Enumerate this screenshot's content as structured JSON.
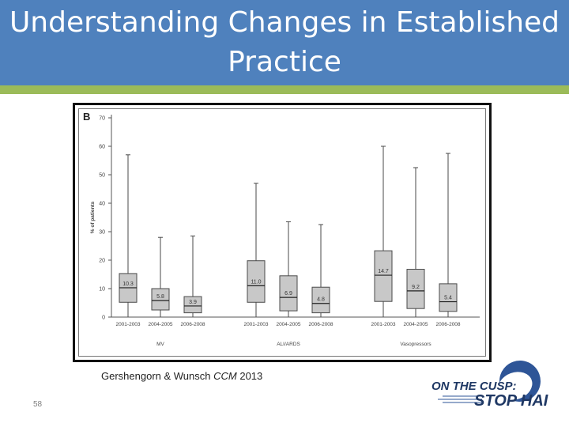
{
  "slide": {
    "title_line1": "Understanding Changes in Established",
    "title_line2": "Practice",
    "citation_authors": "Gershengorn & Wunsch ",
    "citation_journal": "CCM",
    "citation_year": " 2013",
    "page_number": "58"
  },
  "logo": {
    "line1": "ON THE CUSP:",
    "line2": "STOP HAI",
    "colors": {
      "text": "#1f3864",
      "swoosh": "#2e5597"
    }
  },
  "chart_data": {
    "type": "boxplot",
    "panel_label": "B",
    "ylabel": "% of patients",
    "ylim": [
      0,
      70
    ],
    "yticks": [
      0,
      10,
      20,
      30,
      40,
      50,
      60,
      70
    ],
    "groups": [
      {
        "name": "MV",
        "boxes": [
          {
            "period": "2001-2003",
            "min": 0,
            "q1": 5.2,
            "median": 10.3,
            "q3": 15.3,
            "max": 57,
            "label": "10.3"
          },
          {
            "period": "2004-2005",
            "min": 0,
            "q1": 2.5,
            "median": 5.8,
            "q3": 10.0,
            "max": 28,
            "label": "5.8"
          },
          {
            "period": "2006-2008",
            "min": 0,
            "q1": 1.5,
            "median": 3.9,
            "q3": 7.2,
            "max": 28.5,
            "label": "3.9"
          }
        ]
      },
      {
        "name": "ALI/ARDS",
        "boxes": [
          {
            "period": "2001-2003",
            "min": 0,
            "q1": 5.2,
            "median": 11.0,
            "q3": 19.8,
            "max": 47,
            "label": "11.0"
          },
          {
            "period": "2004-2005",
            "min": 0,
            "q1": 2.2,
            "median": 6.9,
            "q3": 14.5,
            "max": 33.5,
            "label": "6.9"
          },
          {
            "period": "2006-2008",
            "min": 0,
            "q1": 1.5,
            "median": 4.8,
            "q3": 10.5,
            "max": 32.5,
            "label": "4.8"
          }
        ]
      },
      {
        "name": "Vasopressors",
        "boxes": [
          {
            "period": "2001-2003",
            "min": 0,
            "q1": 5.5,
            "median": 14.7,
            "q3": 23.3,
            "max": 60,
            "label": "14.7"
          },
          {
            "period": "2004-2005",
            "min": 0,
            "q1": 3.0,
            "median": 9.2,
            "q3": 16.8,
            "max": 52.5,
            "label": "9.2"
          },
          {
            "period": "2006-2008",
            "min": 0,
            "q1": 2.0,
            "median": 5.4,
            "q3": 11.7,
            "max": 57.5,
            "label": "5.4"
          }
        ]
      }
    ],
    "colors": {
      "box_fill": "#c8c8c8",
      "box_stroke": "#4a4a4a",
      "axis": "#555555",
      "text": "#444444"
    }
  }
}
